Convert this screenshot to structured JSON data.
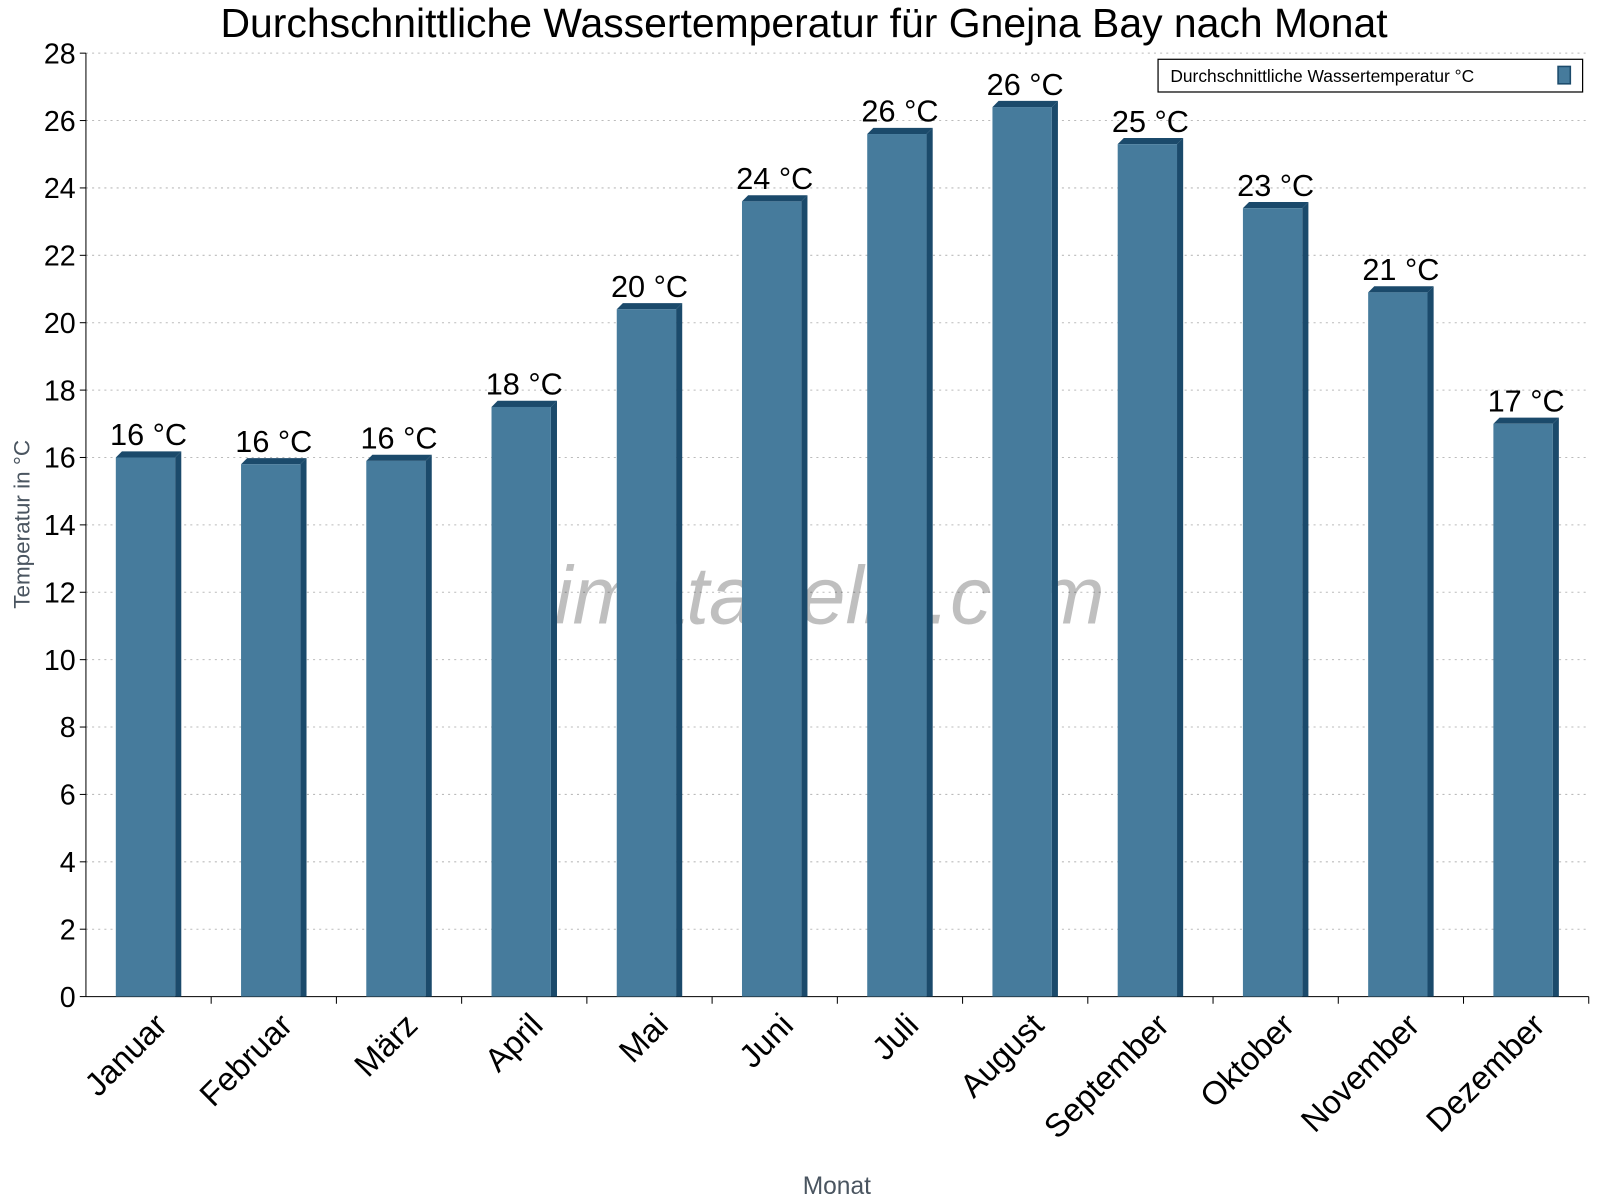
{
  "chart_data": {
    "type": "bar",
    "title": "Durchschnittliche Wassertemperatur für Gnejna Bay nach Monat",
    "xlabel": "Monat",
    "ylabel": "Temperatur in °C",
    "categories": [
      "Januar",
      "Februar",
      "März",
      "April",
      "Mai",
      "Juni",
      "Juli",
      "August",
      "September",
      "Oktober",
      "November",
      "Dezember"
    ],
    "series": [
      {
        "name": "Durchschnittliche Wassertemperatur °C",
        "values": [
          16.0,
          15.8,
          15.9,
          17.5,
          20.4,
          23.6,
          25.6,
          26.4,
          25.3,
          23.4,
          20.9,
          17.0
        ],
        "data_labels": [
          "16 °C",
          "16 °C",
          "16 °C",
          "18 °C",
          "20 °C",
          "24 °C",
          "26 °C",
          "26 °C",
          "25 °C",
          "23 °C",
          "21 °C",
          "17 °C"
        ],
        "color": "#467b9c",
        "side_color": "#1b4a6b"
      }
    ],
    "ylim": [
      0,
      28
    ],
    "yticks": [
      0,
      2,
      4,
      6,
      8,
      10,
      12,
      14,
      16,
      18,
      20,
      22,
      24,
      26,
      28
    ],
    "grid": true,
    "legend": "top-right",
    "watermark": "klimatabelle.com"
  }
}
